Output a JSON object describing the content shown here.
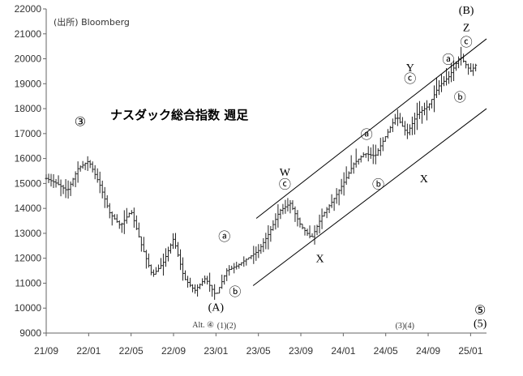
{
  "chart_data": {
    "type": "ohlc",
    "title": "ナスダック総合指数 週足",
    "source": "(出所) Bloomberg",
    "y_ticks": [
      9000,
      10000,
      11000,
      12000,
      13000,
      14000,
      15000,
      16000,
      17000,
      18000,
      19000,
      20000,
      21000,
      22000
    ],
    "ylim": [
      9000,
      22000
    ],
    "x_ticks": [
      "21/09",
      "22/01",
      "22/05",
      "22/09",
      "23/01",
      "23/05",
      "23/09",
      "24/01",
      "24/05",
      "24/09",
      "25/01"
    ],
    "x_tick_months": [
      0,
      4,
      8,
      12,
      16,
      20,
      24,
      28,
      32,
      36,
      40
    ],
    "xlim_months": [
      0,
      41.5
    ],
    "series": [
      {
        "points": [
          [
            0,
            15200
          ],
          [
            1,
            15000
          ],
          [
            2,
            14700
          ],
          [
            3,
            15600
          ],
          [
            4,
            15900
          ],
          [
            5,
            15000
          ],
          [
            6,
            13800
          ],
          [
            7,
            13300
          ],
          [
            8,
            13900
          ],
          [
            9,
            12500
          ],
          [
            10,
            11300
          ],
          [
            11,
            11800
          ],
          [
            12,
            12800
          ],
          [
            13,
            11200
          ],
          [
            14,
            10700
          ],
          [
            15,
            11200
          ],
          [
            16,
            10500
          ],
          [
            17,
            11500
          ],
          [
            18,
            11700
          ],
          [
            19,
            12000
          ],
          [
            20,
            12300
          ],
          [
            21,
            13000
          ],
          [
            22,
            13900
          ],
          [
            23,
            14200
          ],
          [
            24,
            13300
          ],
          [
            25,
            12800
          ],
          [
            26,
            13700
          ],
          [
            27,
            14300
          ],
          [
            28,
            15000
          ],
          [
            29,
            15800
          ],
          [
            30,
            16200
          ],
          [
            31,
            16100
          ],
          [
            32,
            16900
          ],
          [
            33,
            17700
          ],
          [
            34,
            17000
          ],
          [
            35,
            17800
          ],
          [
            36,
            18100
          ],
          [
            37,
            18900
          ],
          [
            38,
            19300
          ],
          [
            39,
            20100
          ],
          [
            40,
            19500
          ],
          [
            40.6,
            19800
          ]
        ]
      }
    ],
    "channel": {
      "upper": [
        [
          19.8,
          13600
        ],
        [
          41.5,
          20800
        ]
      ],
      "lower": [
        [
          19.5,
          10900
        ],
        [
          41.5,
          18000
        ]
      ]
    },
    "wave_labels": [
      {
        "text": "③",
        "m": 3.2,
        "v": 17300
      },
      {
        "text": "ⓐ",
        "m": 16.8,
        "v": 12700
      },
      {
        "text": "ⓑ",
        "m": 17.8,
        "v": 10500
      },
      {
        "text": "(A)",
        "m": 16.0,
        "v": 9900
      },
      {
        "text": "W",
        "m": 22.5,
        "v": 15300
      },
      {
        "text": "ⓒ",
        "m": 22.5,
        "v": 14800
      },
      {
        "text": "X",
        "m": 25.8,
        "v": 11850
      },
      {
        "text": "ⓐ",
        "m": 30.2,
        "v": 16800
      },
      {
        "text": "ⓑ",
        "m": 31.3,
        "v": 14800
      },
      {
        "text": "Y",
        "m": 34.3,
        "v": 19500
      },
      {
        "text": "ⓒ",
        "m": 34.3,
        "v": 19050
      },
      {
        "text": "X",
        "m": 35.6,
        "v": 15050
      },
      {
        "text": "ⓐ",
        "m": 37.9,
        "v": 19800
      },
      {
        "text": "ⓑ",
        "m": 39.0,
        "v": 18300
      },
      {
        "text": "Z",
        "m": 39.6,
        "v": 21100
      },
      {
        "text": "ⓒ",
        "m": 39.6,
        "v": 20500
      },
      {
        "text": "(B)",
        "m": 39.6,
        "v": 21800
      },
      {
        "text": "⑤",
        "m": 40.9,
        "v": 9750
      },
      {
        "text": "Alt. ④",
        "m": 14.8,
        "v": 9220
      },
      {
        "text": "(1)(2)",
        "m": 17.0,
        "v": 9200
      },
      {
        "text": "(3)(4)",
        "m": 33.8,
        "v": 9200
      },
      {
        "text": "(5)",
        "m": 40.9,
        "v": 9250
      }
    ]
  },
  "colors": {
    "candles": "#222222",
    "channel": "#000000",
    "grid": "#bbbbbb",
    "axis": "#666666"
  }
}
